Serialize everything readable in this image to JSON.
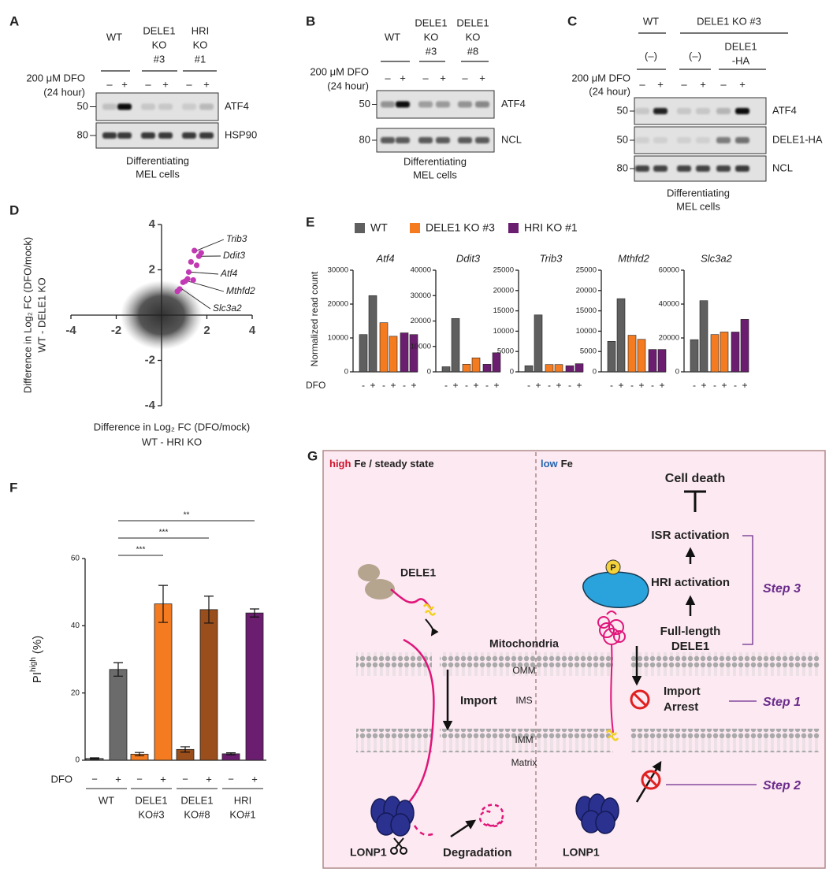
{
  "blots": [
    {
      "label": "A",
      "headers": [
        {
          "lines": [
            "WT"
          ]
        },
        {
          "lines": [
            "DELE1",
            "KO",
            "#3"
          ]
        },
        {
          "lines": [
            "HRI",
            "KO",
            "#1"
          ]
        }
      ],
      "treatment": [
        "200 μM DFO",
        "(24 hour)"
      ],
      "signs": [
        "–",
        "+",
        "–",
        "+",
        "–",
        "+"
      ],
      "rows": [
        {
          "mw": 50,
          "name": "ATF4"
        },
        {
          "mw": 80,
          "name": "HSP90"
        }
      ],
      "caption": [
        "Differentiating",
        "MEL cells"
      ]
    },
    {
      "label": "B",
      "headers": [
        {
          "lines": [
            "WT"
          ]
        },
        {
          "lines": [
            "DELE1",
            "KO",
            "#3"
          ]
        },
        {
          "lines": [
            "DELE1",
            "KO",
            "#8"
          ]
        }
      ],
      "treatment": [
        "200 μM DFO",
        "(24 hour)"
      ],
      "signs": [
        "–",
        "+",
        "–",
        "+",
        "–",
        "+"
      ],
      "rows": [
        {
          "mw": 50,
          "name": "ATF4"
        },
        {
          "mw": 80,
          "name": "NCL"
        }
      ],
      "caption": [
        "Differentiating",
        "MEL cells"
      ]
    },
    {
      "label": "C",
      "headers": [
        {
          "lines": [
            "WT"
          ]
        },
        {
          "lines": [
            "DELE1 KO #3"
          ]
        }
      ],
      "subheaders": [
        {
          "lines": [
            "(–)"
          ]
        },
        {
          "lines": [
            "(–)"
          ]
        },
        {
          "lines": [
            "DELE1",
            "-HA"
          ]
        }
      ],
      "treatment": [
        "200 μM DFO",
        "(24 hour)"
      ],
      "signs": [
        "–",
        "+",
        "–",
        "+",
        "–",
        "+"
      ],
      "rows": [
        {
          "mw": 50,
          "name": "ATF4"
        },
        {
          "mw": 50,
          "name": "DELE1-HA"
        },
        {
          "mw": 80,
          "name": "NCL"
        }
      ],
      "caption": [
        "Differentiating",
        "MEL cells"
      ]
    }
  ],
  "chart_data": [
    {
      "type": "scatter",
      "panel": "D",
      "xlabel": [
        "Difference in Log₂ FC (DFO/mock)",
        "WT - HRI KO"
      ],
      "ylabel": [
        "Difference in Log₂ FC (DFO/mock)",
        "WT - DELE1 KO"
      ],
      "x": [
        1.45,
        1.65,
        1.3,
        1.2,
        1.05,
        1.75,
        1.55,
        0.95,
        0.8,
        1.15,
        1.4,
        0.7
      ],
      "values": [
        2.85,
        2.6,
        2.35,
        1.9,
        1.5,
        2.75,
        2.2,
        1.45,
        1.15,
        1.6,
        1.55,
        1.05
      ],
      "labels": [
        "Trib3",
        "Ddit3",
        null,
        "Atf4",
        "Mthfd2",
        null,
        null,
        null,
        "Slc3a2",
        null,
        null,
        null
      ],
      "color": "#c23ab3",
      "xlim": [
        -4,
        4
      ],
      "ylim": [
        -4,
        4
      ],
      "xticks": [
        -4,
        -2,
        2,
        4
      ],
      "yticks": [
        -4,
        -2,
        2,
        4
      ]
    },
    {
      "type": "bar-group",
      "panel": "E",
      "ylabel": "Normalized read count",
      "xlabel": "DFO",
      "categories": [
        "-",
        "+"
      ],
      "legend": [
        {
          "name": "WT",
          "color": "#5f5f5f"
        },
        {
          "name": "DELE1 KO #3",
          "color": "#f47b20"
        },
        {
          "name": "HRI KO #1",
          "color": "#6b1d70"
        }
      ],
      "charts": [
        {
          "title": "Atf4",
          "ylim": [
            0,
            30000
          ],
          "yticks": [
            0,
            10000,
            20000,
            30000
          ],
          "series": [
            [
              11000,
              22500
            ],
            [
              14500,
              10500
            ],
            [
              11500,
              11000
            ]
          ]
        },
        {
          "title": "Ddit3",
          "ylim": [
            0,
            40000
          ],
          "yticks": [
            0,
            10000,
            20000,
            30000,
            40000
          ],
          "series": [
            [
              2000,
              21000
            ],
            [
              3000,
              5500
            ],
            [
              3000,
              7500
            ]
          ]
        },
        {
          "title": "Trib3",
          "ylim": [
            0,
            25000
          ],
          "yticks": [
            0,
            5000,
            10000,
            15000,
            20000,
            25000
          ],
          "series": [
            [
              1500,
              14000
            ],
            [
              1800,
              1800
            ],
            [
              1500,
              2000
            ]
          ]
        },
        {
          "title": "Mthfd2",
          "ylim": [
            0,
            25000
          ],
          "yticks": [
            0,
            5000,
            10000,
            15000,
            20000,
            25000
          ],
          "series": [
            [
              7500,
              18000
            ],
            [
              9000,
              8000
            ],
            [
              5500,
              5500
            ]
          ]
        },
        {
          "title": "Slc3a2",
          "ylim": [
            0,
            60000
          ],
          "yticks": [
            0,
            20000,
            40000,
            60000
          ],
          "series": [
            [
              19000,
              42000
            ],
            [
              22000,
              23500
            ],
            [
              23500,
              31000
            ]
          ]
        }
      ]
    },
    {
      "type": "bar",
      "panel": "F",
      "ylabel": {
        "main": "PI",
        "sup": "high",
        "unit": "(%)"
      },
      "xlabel": "DFO",
      "signs": [
        "−",
        "+"
      ],
      "groups": [
        [
          "WT"
        ],
        [
          "DELE1",
          "KO#3"
        ],
        [
          "DELE1",
          "KO#8"
        ],
        [
          "HRI",
          "KO#1"
        ]
      ],
      "values": [
        0.5,
        27,
        1.8,
        46.5,
        3.2,
        44.8,
        1.9,
        43.8
      ],
      "errors": [
        0.2,
        2,
        0.5,
        5.5,
        0.8,
        4,
        0.3,
        1.2
      ],
      "colors": [
        "#6b6b6b",
        "#6b6b6b",
        "#f47b20",
        "#f47b20",
        "#9a4e1c",
        "#9a4e1c",
        "#6b1d70",
        "#6b1d70"
      ],
      "ylim": [
        0,
        60
      ],
      "yticks": [
        0,
        20,
        40,
        60
      ],
      "significance": [
        "***",
        "***",
        "**"
      ]
    }
  ],
  "diagram": {
    "label": "G",
    "left_title": {
      "em": "high",
      "rest": "Fe / steady state"
    },
    "right_title": {
      "em": "low",
      "rest": "Fe"
    },
    "cascade": [
      "Cell death",
      "ISR activation",
      "HRI activation",
      "Full-length",
      "DELE1"
    ],
    "steps": [
      "Step 3",
      "Step 1",
      "Step 2"
    ],
    "mitochondria": "Mitochondria",
    "compartments": [
      "OMM",
      "IMS",
      "IMM",
      "Matrix"
    ],
    "import": "Import",
    "arrest": [
      "Import",
      "Arrest"
    ],
    "proteins": {
      "dele1": "DELE1",
      "lonp1_left": "LONP1",
      "lonp1_right": "LONP1",
      "phospho": "P"
    },
    "degradation": "Degradation"
  }
}
